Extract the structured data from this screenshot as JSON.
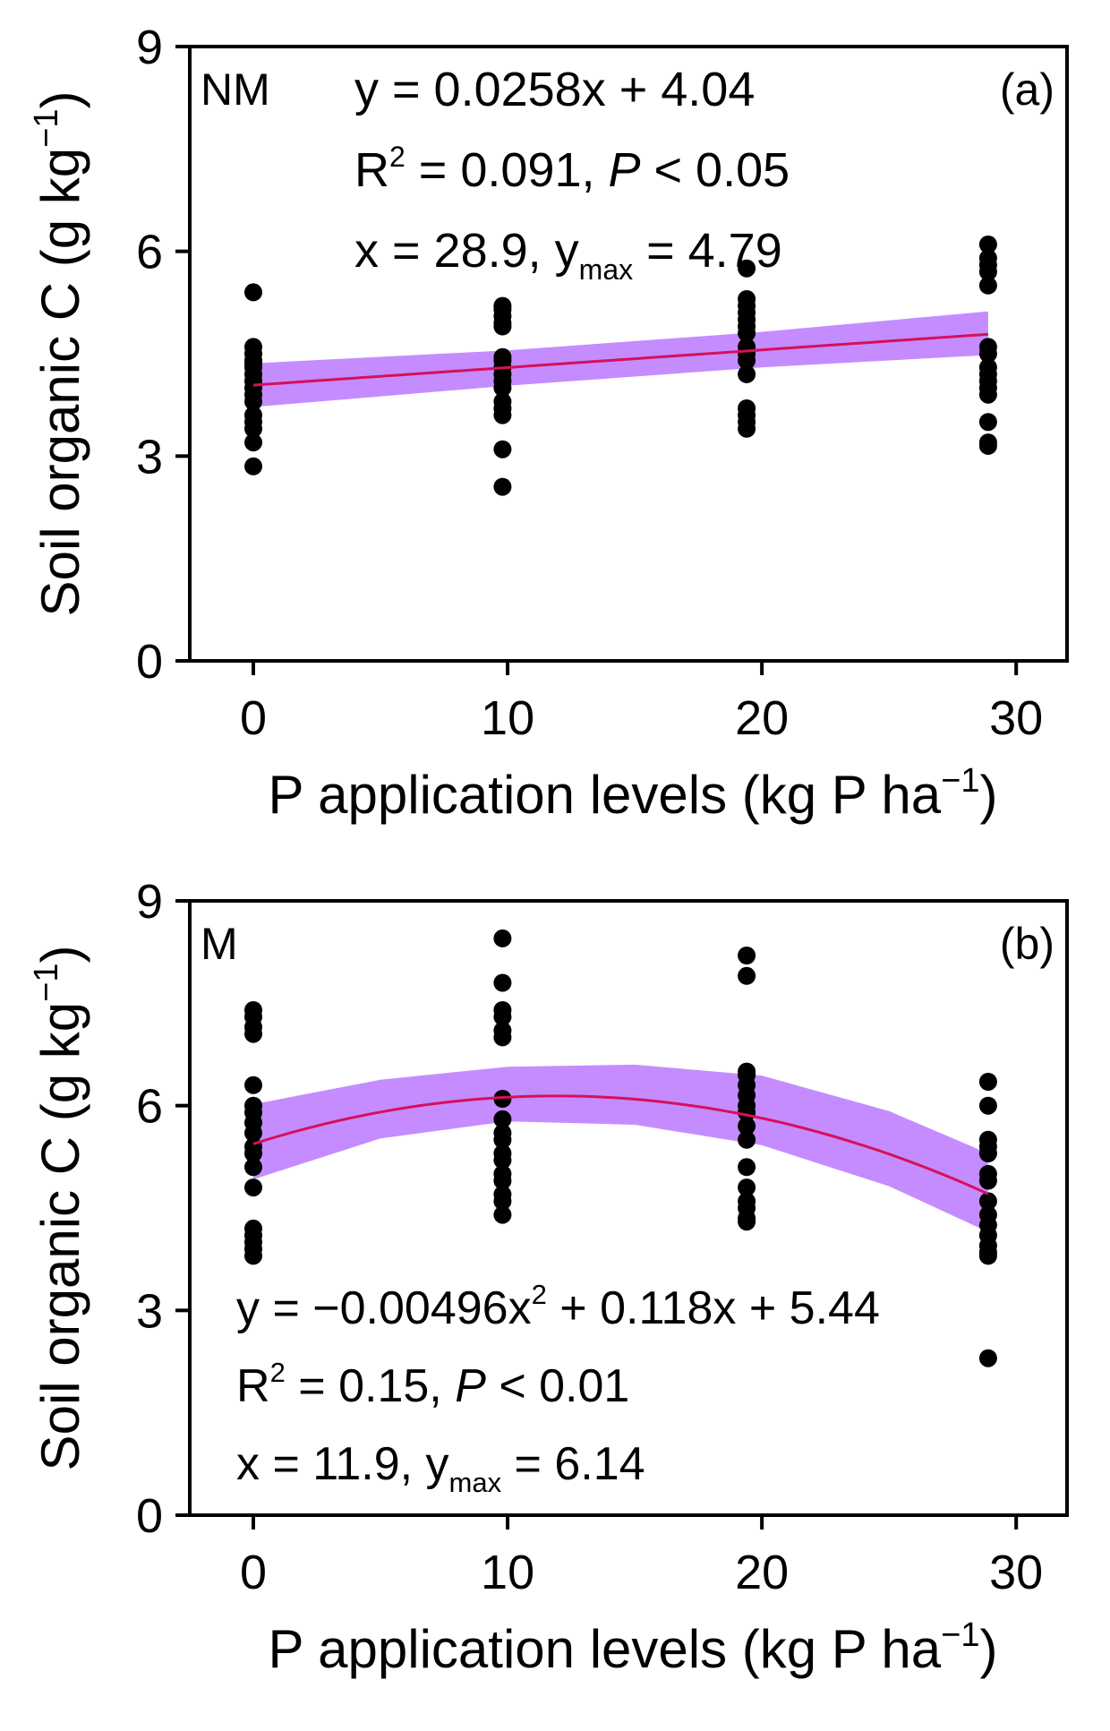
{
  "chart_data": [
    {
      "type": "scatter",
      "panel_label": "(a)",
      "group": "NM",
      "xlabel": "P application levels (kg P ha",
      "xlabel_sup": "−1",
      "xlabel_end": ")",
      "ylabel": "Soil organic C (g kg",
      "ylabel_sup": "−1",
      "ylabel_end": ")",
      "xlim": [
        -2.5,
        32
      ],
      "ylim": [
        0,
        9
      ],
      "xticks": [
        0,
        10,
        20,
        30
      ],
      "yticks": [
        0,
        3,
        6,
        9
      ],
      "xtick_labels": [
        "0",
        "10",
        "20",
        "30"
      ],
      "ytick_labels": [
        "0",
        "3",
        "6",
        "9"
      ],
      "points": {
        "x": [
          0,
          0,
          0,
          0,
          0,
          0,
          0,
          0,
          0,
          0,
          0,
          0,
          0,
          0,
          0,
          0,
          9.8,
          9.8,
          9.8,
          9.8,
          9.8,
          9.8,
          9.8,
          9.8,
          9.8,
          9.8,
          9.8,
          9.8,
          9.8,
          9.8,
          9.8,
          9.8,
          19.4,
          19.4,
          19.4,
          19.4,
          19.4,
          19.4,
          19.4,
          19.4,
          19.4,
          19.4,
          19.4,
          19.4,
          19.4,
          19.4,
          19.4,
          28.9,
          28.9,
          28.9,
          28.9,
          28.9,
          28.9,
          28.9,
          28.9,
          28.9,
          28.9,
          28.9,
          28.9,
          28.9,
          28.9,
          28.9
        ],
        "y": [
          5.4,
          4.6,
          4.5,
          4.4,
          4.3,
          4.2,
          4.1,
          4.0,
          3.9,
          3.8,
          3.6,
          3.5,
          3.4,
          3.2,
          2.85,
          4.35,
          5.2,
          5.15,
          5.05,
          4.95,
          4.9,
          4.4,
          4.3,
          4.2,
          4.1,
          4.0,
          3.8,
          3.7,
          3.6,
          3.1,
          2.55,
          4.45,
          5.75,
          5.3,
          5.2,
          5.1,
          5.0,
          4.9,
          4.8,
          4.6,
          4.5,
          4.4,
          4.2,
          3.7,
          3.6,
          3.5,
          3.4,
          6.1,
          5.9,
          5.8,
          5.7,
          5.5,
          4.6,
          4.5,
          4.3,
          4.2,
          4.0,
          3.9,
          3.5,
          3.2,
          3.15,
          4.1
        ]
      },
      "fit": {
        "type": "linear",
        "slope": 0.0258,
        "intercept": 4.04,
        "x_range": [
          0,
          28.9
        ],
        "ci": {
          "x": [
            0,
            10,
            20,
            28.9
          ],
          "lower": [
            3.72,
            4.03,
            4.3,
            4.48
          ],
          "upper": [
            4.36,
            4.55,
            4.82,
            5.12
          ]
        }
      },
      "annotation_lines": [
        {
          "parts": [
            {
              "text": "y = 0.0258x + 4.04"
            }
          ]
        },
        {
          "parts": [
            {
              "text": "R"
            },
            {
              "text": "2",
              "sup": true
            },
            {
              "text": " = 0.091, "
            },
            {
              "text": "P",
              "italic": true
            },
            {
              "text": " < 0.05"
            }
          ]
        },
        {
          "parts": [
            {
              "text": "x = 28.9, y"
            },
            {
              "text": "max",
              "sub": true
            },
            {
              "text": " = 4.79"
            }
          ]
        }
      ],
      "colors": {
        "points": "#000000",
        "fit_line": "#d6105a",
        "ci_band": "#b266ff"
      }
    },
    {
      "type": "scatter",
      "panel_label": "(b)",
      "group": "M",
      "xlabel": "P application levels (kg P ha",
      "xlabel_sup": "−1",
      "xlabel_end": ")",
      "ylabel": "Soil organic C (g kg",
      "ylabel_sup": "−1",
      "ylabel_end": ")",
      "xlim": [
        -2.5,
        32
      ],
      "ylim": [
        0,
        9
      ],
      "xticks": [
        0,
        10,
        20,
        30
      ],
      "yticks": [
        0,
        3,
        6,
        9
      ],
      "xtick_labels": [
        "0",
        "10",
        "20",
        "30"
      ],
      "ytick_labels": [
        "0",
        "3",
        "6",
        "9"
      ],
      "points": {
        "x": [
          0,
          0,
          0,
          0,
          0,
          0,
          0,
          0,
          0,
          0,
          0,
          0,
          0,
          0,
          0,
          0,
          0,
          0,
          9.8,
          9.8,
          9.8,
          9.8,
          9.8,
          9.8,
          9.8,
          9.8,
          9.8,
          9.8,
          9.8,
          9.8,
          9.8,
          9.8,
          9.8,
          9.8,
          9.8,
          19.4,
          19.4,
          19.4,
          19.4,
          19.4,
          19.4,
          19.4,
          19.4,
          19.4,
          19.4,
          19.4,
          19.4,
          19.4,
          19.4,
          19.4,
          19.4,
          28.9,
          28.9,
          28.9,
          28.9,
          28.9,
          28.9,
          28.9,
          28.9,
          28.9,
          28.9,
          28.9,
          28.9,
          28.9,
          28.9,
          28.9
        ],
        "y": [
          7.4,
          7.3,
          7.15,
          7.05,
          6.3,
          5.9,
          5.75,
          5.6,
          5.4,
          5.3,
          4.8,
          4.2,
          4.1,
          4.0,
          3.9,
          3.8,
          5.1,
          6.0,
          8.45,
          7.8,
          7.4,
          7.3,
          7.1,
          7.0,
          5.8,
          5.6,
          5.5,
          5.2,
          5.0,
          4.9,
          4.7,
          4.6,
          4.4,
          5.3,
          6.1,
          8.2,
          7.9,
          6.5,
          6.45,
          6.3,
          6.15,
          6.0,
          5.9,
          5.5,
          5.1,
          4.8,
          4.6,
          4.5,
          4.35,
          4.3,
          5.7,
          6.35,
          6.0,
          5.5,
          5.4,
          5.3,
          5.0,
          4.6,
          4.4,
          4.25,
          4.1,
          3.95,
          3.85,
          3.8,
          2.3,
          4.9
        ]
      },
      "fit": {
        "type": "quadratic",
        "a": -0.00496,
        "b": 0.118,
        "c": 5.44,
        "x_range": [
          0,
          28.9
        ],
        "ci": {
          "x": [
            0,
            5,
            10,
            15,
            20,
            25,
            28.9
          ],
          "lower": [
            4.92,
            5.52,
            5.77,
            5.72,
            5.42,
            4.82,
            4.15
          ],
          "upper": [
            6.02,
            6.38,
            6.57,
            6.6,
            6.44,
            5.92,
            5.3
          ]
        }
      },
      "annotation_lines": [
        {
          "parts": [
            {
              "text": "y = −0.00496x"
            },
            {
              "text": "2",
              "sup": true
            },
            {
              "text": " + 0.118x + 5.44"
            }
          ]
        },
        {
          "parts": [
            {
              "text": "R"
            },
            {
              "text": "2",
              "sup": true
            },
            {
              "text": " = 0.15, "
            },
            {
              "text": "P",
              "italic": true
            },
            {
              "text": " < 0.01"
            }
          ]
        },
        {
          "parts": [
            {
              "text": "x = 11.9, y"
            },
            {
              "text": "max",
              "sub": true
            },
            {
              "text": " = 6.14"
            }
          ]
        }
      ],
      "colors": {
        "points": "#000000",
        "fit_line": "#d6105a",
        "ci_band": "#b266ff"
      }
    }
  ]
}
